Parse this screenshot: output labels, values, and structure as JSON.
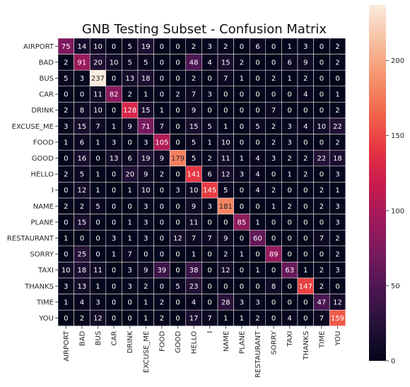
{
  "chart_data": {
    "type": "heatmap",
    "title": "GNB Testing Subset - Confusion Matrix",
    "xlabel": "",
    "ylabel": "",
    "colormap": "rocket",
    "colorbar": {
      "range": [
        0,
        237
      ],
      "ticks": [
        "0",
        "50",
        "100",
        "150",
        "200"
      ],
      "tick_values": [
        0,
        50,
        100,
        150,
        200
      ]
    },
    "categories": [
      "AIRPORT",
      "BAD",
      "BUS",
      "CAR",
      "DRINK",
      "EXCUSE_ME",
      "FOOD",
      "GOOD",
      "HELLO",
      "I",
      "NAME",
      "PLANE",
      "RESTAURANT",
      "SORRY",
      "TAXI",
      "THANKS",
      "TIME",
      "YOU"
    ],
    "matrix": [
      [
        75,
        14,
        10,
        0,
        5,
        19,
        0,
        0,
        2,
        3,
        2,
        0,
        6,
        0,
        1,
        3,
        0,
        2
      ],
      [
        2,
        91,
        20,
        10,
        5,
        5,
        0,
        0,
        48,
        4,
        15,
        2,
        0,
        0,
        6,
        9,
        0,
        2
      ],
      [
        5,
        3,
        237,
        0,
        13,
        18,
        0,
        0,
        2,
        0,
        7,
        1,
        0,
        2,
        1,
        2,
        0,
        0
      ],
      [
        0,
        0,
        11,
        82,
        2,
        1,
        0,
        2,
        7,
        3,
        0,
        0,
        0,
        0,
        0,
        4,
        0,
        1
      ],
      [
        2,
        8,
        10,
        0,
        128,
        15,
        1,
        0,
        9,
        0,
        0,
        0,
        0,
        7,
        0,
        0,
        0,
        2
      ],
      [
        3,
        15,
        7,
        1,
        9,
        71,
        7,
        0,
        15,
        5,
        1,
        0,
        5,
        2,
        3,
        4,
        10,
        22
      ],
      [
        1,
        6,
        1,
        3,
        0,
        3,
        105,
        0,
        5,
        1,
        10,
        0,
        0,
        2,
        3,
        0,
        0,
        2
      ],
      [
        0,
        16,
        0,
        13,
        6,
        19,
        9,
        179,
        5,
        2,
        11,
        1,
        4,
        3,
        2,
        2,
        22,
        18
      ],
      [
        2,
        5,
        1,
        0,
        20,
        9,
        2,
        0,
        141,
        6,
        12,
        3,
        4,
        0,
        1,
        2,
        0,
        3
      ],
      [
        0,
        12,
        1,
        0,
        1,
        10,
        0,
        3,
        10,
        145,
        5,
        0,
        4,
        2,
        0,
        0,
        2,
        1
      ],
      [
        2,
        2,
        5,
        0,
        0,
        3,
        0,
        0,
        9,
        3,
        181,
        0,
        0,
        1,
        2,
        0,
        2,
        3
      ],
      [
        0,
        15,
        0,
        0,
        1,
        3,
        0,
        0,
        11,
        0,
        0,
        85,
        1,
        0,
        0,
        0,
        0,
        3
      ],
      [
        1,
        0,
        0,
        3,
        1,
        3,
        0,
        12,
        7,
        7,
        9,
        0,
        60,
        0,
        0,
        0,
        7,
        2
      ],
      [
        0,
        25,
        0,
        1,
        7,
        0,
        0,
        0,
        1,
        0,
        2,
        1,
        0,
        89,
        0,
        0,
        0,
        2
      ],
      [
        10,
        18,
        11,
        0,
        3,
        9,
        39,
        0,
        38,
        0,
        12,
        0,
        1,
        0,
        63,
        1,
        2,
        3
      ],
      [
        3,
        13,
        1,
        0,
        3,
        2,
        0,
        5,
        23,
        0,
        0,
        0,
        0,
        8,
        0,
        147,
        2,
        0
      ],
      [
        1,
        4,
        3,
        0,
        0,
        1,
        2,
        0,
        4,
        0,
        28,
        3,
        3,
        0,
        0,
        0,
        47,
        12
      ],
      [
        0,
        2,
        12,
        0,
        0,
        1,
        2,
        0,
        17,
        7,
        1,
        1,
        2,
        0,
        4,
        0,
        7,
        159
      ]
    ]
  }
}
